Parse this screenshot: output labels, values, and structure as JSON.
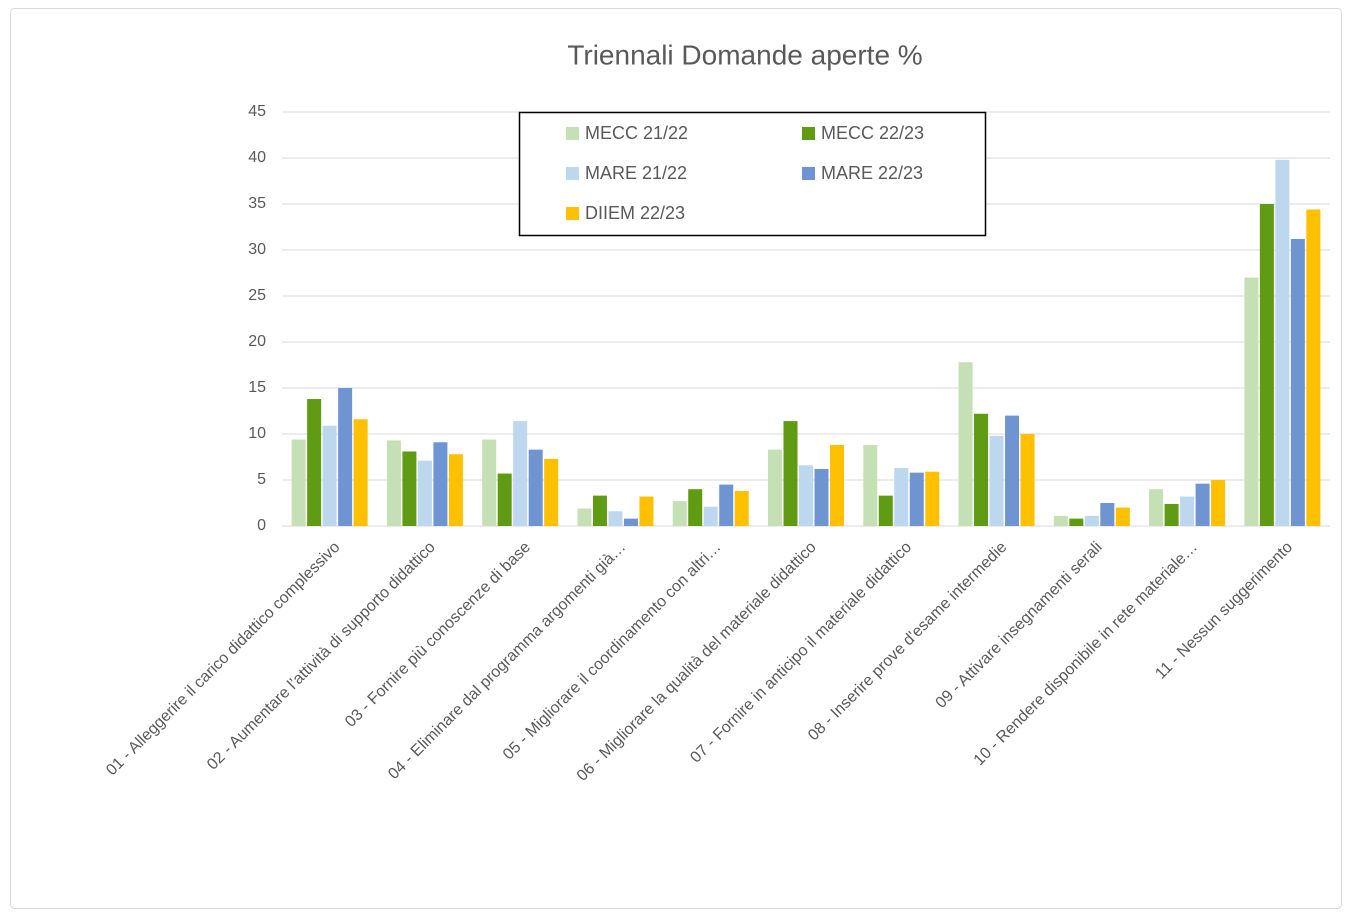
{
  "chart_data": {
    "type": "bar",
    "title": "Triennali Domande aperte %",
    "categories": [
      "01 - Alleggerire il carico didattico complessivo",
      "02 - Aumentare l’attività di supporto didattico",
      "03 - Fornire più conoscenze di base",
      "04 - Eliminare dal programma argomenti già…",
      "05 - Migliorare il coordinamento con altri…",
      "06 - Migliorare la qualità del materiale didattico",
      "07 - Fornire in anticipo il materiale didattico",
      "08 - Inserire prove d'esame intermedie",
      "09 - Attivare insegnamenti serali",
      "10 - Rendere disponibile in rete materiale…",
      "11 - Nessun suggerimento"
    ],
    "series": [
      {
        "name": "MECC 21/22",
        "color": "#c5e0b4",
        "values": [
          9.4,
          9.3,
          9.4,
          1.9,
          2.7,
          8.3,
          8.8,
          17.8,
          1.1,
          4.0,
          27.0
        ]
      },
      {
        "name": "MECC 22/23",
        "color": "#5f9b13",
        "values": [
          13.8,
          8.1,
          5.7,
          3.3,
          4.0,
          11.4,
          3.3,
          12.2,
          0.8,
          2.4,
          35.0
        ]
      },
      {
        "name": "MARE 21/22",
        "color": "#bdd7ee",
        "values": [
          10.9,
          7.1,
          11.4,
          1.6,
          2.1,
          6.6,
          6.3,
          9.8,
          1.1,
          3.2,
          39.8
        ]
      },
      {
        "name": "MARE 22/23",
        "color": "#6f94d2",
        "values": [
          15.0,
          9.1,
          8.3,
          0.8,
          4.5,
          6.2,
          5.8,
          12.0,
          2.5,
          4.6,
          31.2
        ]
      },
      {
        "name": "DIIEM 22/23",
        "color": "#ffc000",
        "values": [
          11.6,
          7.8,
          7.3,
          3.2,
          3.8,
          8.8,
          5.9,
          10.0,
          2.0,
          5.0,
          34.4
        ]
      }
    ],
    "ylim": [
      0,
      45
    ],
    "yticks": [
      0,
      5,
      10,
      15,
      20,
      25,
      30,
      35,
      40,
      45
    ],
    "grid": true
  }
}
